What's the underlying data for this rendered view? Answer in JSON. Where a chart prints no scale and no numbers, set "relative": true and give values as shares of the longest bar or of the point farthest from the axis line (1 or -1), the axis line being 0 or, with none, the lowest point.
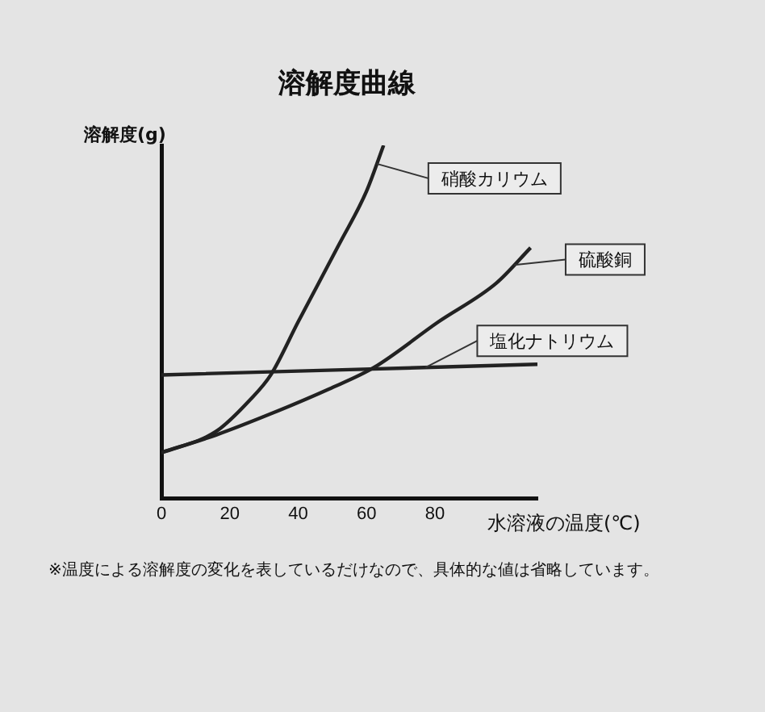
{
  "chart_data": {
    "type": "line",
    "title": "溶解度曲線",
    "xlabel": "水溶液の温度(℃)",
    "ylabel": "溶解度(g)",
    "annotations": [
      "※温度による溶解度の変化を表しているだけなので、具体的な値は省略しています。"
    ],
    "relative": true,
    "xlim": [
      0,
      110
    ],
    "xticks": [
      0,
      20,
      40,
      60,
      80
    ],
    "grid": false,
    "legend": false,
    "marker": "none",
    "line_style": "solid",
    "series": [
      {
        "name": "硝酸カリウム",
        "color": "#222222",
        "x": [
          0,
          16,
          26,
          32,
          40,
          52,
          60,
          65
        ],
        "values": [
          0.13,
          0.19,
          0.28,
          0.35,
          0.5,
          0.72,
          0.87,
          1
        ]
      },
      {
        "name": "硫酸銅",
        "color": "#222222",
        "x": [
          0,
          16,
          32,
          49,
          62,
          81,
          98,
          108
        ],
        "values": [
          0.13,
          0.18,
          0.24,
          0.31,
          0.37,
          0.5,
          0.61,
          0.71
        ]
      },
      {
        "name": "塩化ナトリウム",
        "color": "#222222",
        "x": [
          0,
          110
        ],
        "values": [
          0.35,
          0.38
        ]
      }
    ]
  }
}
